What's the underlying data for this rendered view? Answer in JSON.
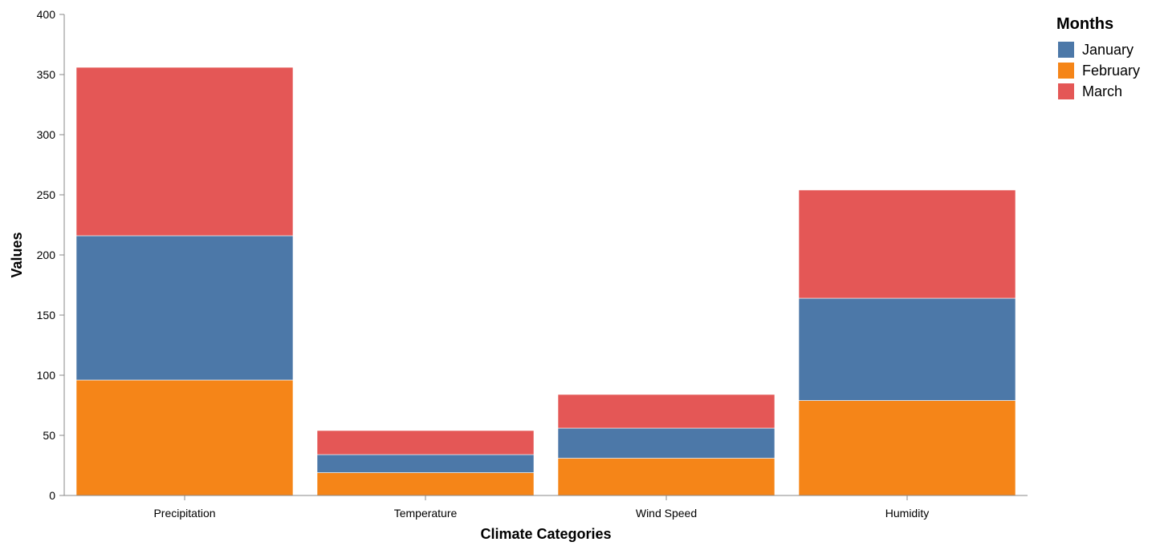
{
  "chart_data": {
    "type": "bar",
    "stacked": true,
    "categories": [
      "Precipitation",
      "Temperature",
      "Wind Speed",
      "Humidity"
    ],
    "series": [
      {
        "name": "February",
        "values": [
          96,
          19,
          31,
          79
        ],
        "color": "#f58518"
      },
      {
        "name": "January",
        "values": [
          120,
          15,
          25,
          85
        ],
        "color": "#4c78a8"
      },
      {
        "name": "March",
        "values": [
          140,
          20,
          28,
          90
        ],
        "color": "#e45756"
      }
    ],
    "xlabel": "Climate Categories",
    "ylabel": "Values",
    "ylim": [
      0,
      400
    ],
    "yticks": [
      0,
      50,
      100,
      150,
      200,
      250,
      300,
      350,
      400
    ],
    "grid": false,
    "legend": {
      "title": "Months",
      "placement": "top-right",
      "entries": [
        {
          "name": "January",
          "color": "#4c78a8"
        },
        {
          "name": "February",
          "color": "#f58518"
        },
        {
          "name": "March",
          "color": "#e45756"
        }
      ]
    }
  }
}
